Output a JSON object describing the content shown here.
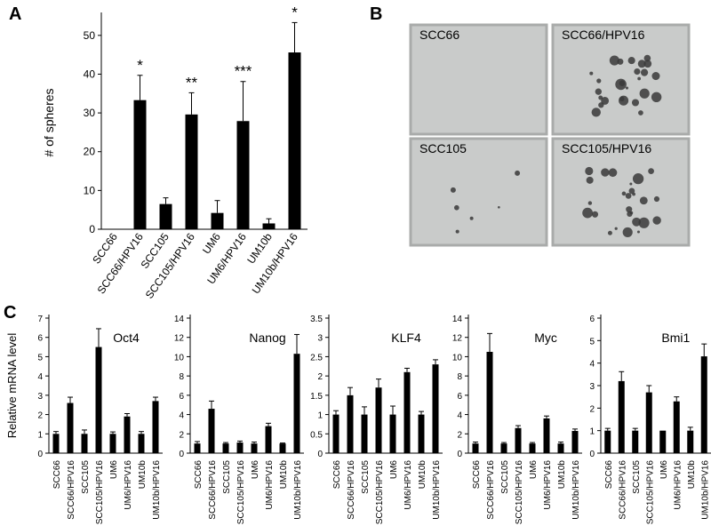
{
  "panels": {
    "a": "A",
    "b": "B",
    "c": "C"
  },
  "chart_data": [
    {
      "type": "bar",
      "title": "",
      "xlabel": "",
      "ylabel": "# of spheres",
      "ylim": [
        0,
        55
      ],
      "yticks": [
        0,
        10,
        20,
        30,
        40,
        50
      ],
      "categories": [
        "SCC66",
        "SCC66/HPV16",
        "SCC105",
        "SCC105/HPV16",
        "UM6",
        "UM6/HPV16",
        "UM10b",
        "UM10b/HPV16"
      ],
      "values": [
        0,
        33.3,
        6.5,
        29.6,
        4.2,
        27.9,
        1.5,
        45.6
      ],
      "errors": [
        0,
        6.4,
        1.6,
        5.6,
        3.2,
        10.2,
        1.2,
        7.7
      ],
      "significance": [
        "",
        "*",
        "",
        "**",
        "",
        "***",
        "",
        "*"
      ]
    },
    {
      "type": "bar",
      "title": "Oct4",
      "ylabel": "Relative mRNA level",
      "ylim": [
        0,
        7
      ],
      "yticks": [
        0,
        1,
        2,
        3,
        4,
        5,
        6,
        7
      ],
      "categories": [
        "SCC66",
        "SCC66/HPV16",
        "SCC105",
        "SCC105/HPV16",
        "UM6",
        "UM6/HPV16",
        "UM10b",
        "UM10b/HPV16"
      ],
      "values": [
        1.0,
        2.6,
        1.0,
        5.5,
        1.0,
        1.9,
        1.0,
        2.7
      ],
      "errors": [
        0.12,
        0.3,
        0.2,
        0.95,
        0.1,
        0.15,
        0.12,
        0.2
      ]
    },
    {
      "type": "bar",
      "title": "Nanog",
      "ylabel": "",
      "ylim": [
        0,
        14
      ],
      "yticks": [
        0,
        2,
        4,
        6,
        8,
        10,
        12,
        14
      ],
      "categories": [
        "SCC66",
        "SCC66/HPV16",
        "SCC105",
        "SCC105/HPV16",
        "UM6",
        "UM6/HPV16",
        "UM10b",
        "UM10b/HPV16"
      ],
      "values": [
        1.0,
        4.6,
        1.0,
        1.1,
        1.0,
        2.8,
        1.0,
        10.3
      ],
      "errors": [
        0.2,
        0.8,
        0.1,
        0.15,
        0.15,
        0.3,
        0.05,
        2.0
      ]
    },
    {
      "type": "bar",
      "title": "KLF4",
      "ylabel": "",
      "ylim": [
        0,
        3.5
      ],
      "yticks": [
        0,
        0.5,
        1,
        1.5,
        2,
        2.5,
        3,
        3.5
      ],
      "ytick_labels": [
        "0",
        "0.5",
        "1",
        "1.5",
        "2",
        "2.5",
        "3",
        "3.5"
      ],
      "categories": [
        "SCC66",
        "SCC66/HPV16",
        "SCC105",
        "SCC105/HPV16",
        "UM6",
        "UM6/HPV16",
        "UM10b",
        "UM10b/HPV16"
      ],
      "values": [
        1.0,
        1.5,
        1.0,
        1.7,
        1.0,
        2.1,
        1.0,
        2.3
      ],
      "errors": [
        0.1,
        0.2,
        0.2,
        0.22,
        0.22,
        0.1,
        0.08,
        0.12
      ]
    },
    {
      "type": "bar",
      "title": "Myc",
      "ylabel": "",
      "ylim": [
        0,
        14
      ],
      "yticks": [
        0,
        2,
        4,
        6,
        8,
        10,
        12,
        14
      ],
      "categories": [
        "SCC66",
        "SCC66/HPV16",
        "SCC105",
        "SCC105/HPV16",
        "UM6",
        "UM6/HPV16",
        "UM10b",
        "UM10b/HPV16"
      ],
      "values": [
        1.0,
        10.5,
        1.0,
        2.6,
        1.0,
        3.6,
        1.0,
        2.3
      ],
      "errors": [
        0.15,
        1.9,
        0.1,
        0.25,
        0.1,
        0.25,
        0.15,
        0.2
      ]
    },
    {
      "type": "bar",
      "title": "Bmi1",
      "ylabel": "",
      "ylim": [
        0,
        6
      ],
      "yticks": [
        0,
        1,
        2,
        3,
        4,
        5,
        6
      ],
      "categories": [
        "SCC66",
        "SCC66/HPV16",
        "SCC105",
        "SCC105/HPV16",
        "UM6",
        "UM6/HPV16",
        "UM10b",
        "UM10b/HPV16"
      ],
      "values": [
        1.0,
        3.2,
        1.0,
        2.7,
        1.0,
        2.3,
        1.0,
        4.3
      ],
      "errors": [
        0.1,
        0.42,
        0.1,
        0.3,
        0.0,
        0.2,
        0.15,
        0.55
      ]
    }
  ],
  "photos": [
    {
      "label": "SCC66",
      "spheres": "none"
    },
    {
      "label": "SCC66/HPV16",
      "spheres": "many"
    },
    {
      "label": "SCC105",
      "spheres": "few"
    },
    {
      "label": "SCC105/HPV16",
      "spheres": "many"
    }
  ],
  "colors": {
    "bars": "#000000",
    "photo_bg": "#c9cbca"
  }
}
